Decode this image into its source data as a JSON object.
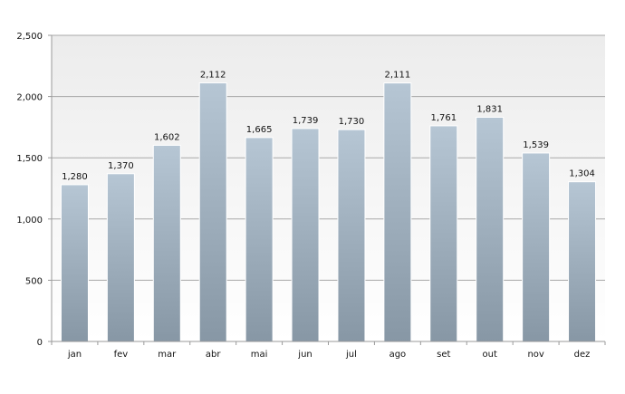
{
  "chart_data": {
    "type": "bar",
    "title": "",
    "xlabel": "",
    "ylabel": "",
    "categories": [
      "jan",
      "fev",
      "mar",
      "abr",
      "mai",
      "jun",
      "jul",
      "ago",
      "set",
      "out",
      "nov",
      "dez"
    ],
    "values": [
      1280,
      1370,
      1602,
      2112,
      1665,
      1739,
      1730,
      2111,
      1761,
      1831,
      1539,
      1304
    ],
    "value_labels": [
      "1,280",
      "1,370",
      "1,602",
      "2,112",
      "1,665",
      "1,739",
      "1,730",
      "2,111",
      "1,761",
      "1,831",
      "1,539",
      "1,304"
    ],
    "ylim": [
      0,
      2500
    ],
    "yticks": [
      0,
      500,
      1000,
      1500,
      2000,
      2500
    ],
    "ytick_labels": [
      "0",
      "500",
      "1,000",
      "1,500",
      "2,000",
      "2,500"
    ],
    "grid": true,
    "legend": "none",
    "colors": {
      "bar_light": "#b6c6d4",
      "bar_dark": "#8797a5",
      "bar_edge": "#ffffff",
      "plot_bg_top": "#ececec",
      "plot_bg_bottom": "#ffffff",
      "grid": "#a8a8a8",
      "axis": "#9a9a9a"
    }
  }
}
